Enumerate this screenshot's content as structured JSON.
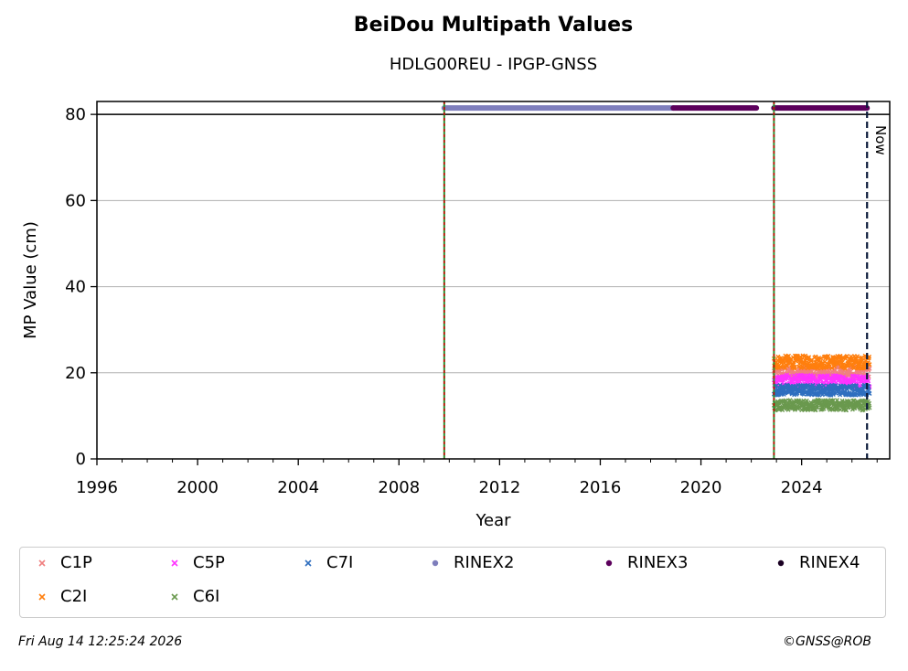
{
  "chart_data": {
    "type": "scatter",
    "title": "BeiDou Multipath Values",
    "subtitle": "HDLG00REU - IPGP-GNSS",
    "xlabel": "Year",
    "ylabel": "MP Value (cm)",
    "xlim": [
      1996,
      2027.5
    ],
    "ylim": [
      0,
      83
    ],
    "x_ticks": [
      "1996",
      "2000",
      "2004",
      "2008",
      "2012",
      "2016",
      "2020",
      "2024"
    ],
    "y_ticks": [
      "0",
      "20",
      "40",
      "60",
      "80"
    ],
    "grid": "horizontal",
    "ref_line_y": 80,
    "vertical_markers": [
      {
        "x": 2009.8,
        "style": "red-green-dashed"
      },
      {
        "x": 2022.9,
        "style": "red-green-dashed"
      }
    ],
    "now_marker": {
      "x": 2026.6,
      "label": "Now"
    },
    "series": [
      {
        "name": "C1P",
        "color": "#f08080",
        "marker": "x",
        "x_range": [
          2022.9,
          2026.7
        ],
        "mean": 20,
        "spread": 1.5
      },
      {
        "name": "C2I",
        "color": "#ff7f0e",
        "marker": "x",
        "x_range": [
          2022.9,
          2026.7
        ],
        "mean": 22.5,
        "spread": 1.5
      },
      {
        "name": "C5P",
        "color": "#ff33ff",
        "marker": "x",
        "x_range": [
          2022.9,
          2026.7
        ],
        "mean": 18,
        "spread": 1.5
      },
      {
        "name": "C6I",
        "color": "#6a994e",
        "marker": "x",
        "x_range": [
          2022.9,
          2026.7
        ],
        "mean": 12.5,
        "spread": 1.2
      },
      {
        "name": "C7I",
        "color": "#2f6fbf",
        "marker": "x",
        "x_range": [
          2022.9,
          2026.7
        ],
        "mean": 16,
        "spread": 1.2
      },
      {
        "name": "RINEX2",
        "color": "#7e7ebc",
        "marker": "o",
        "segments": [
          [
            2009.8,
            2018.9
          ]
        ],
        "y": 81.5
      },
      {
        "name": "RINEX3",
        "color": "#5c005c",
        "marker": "o",
        "segments": [
          [
            2018.9,
            2022.2
          ],
          [
            2022.9,
            2026.6
          ]
        ],
        "y": 81.5
      },
      {
        "name": "RINEX4",
        "color": "#1a0022",
        "marker": "o",
        "segments": [],
        "y": 81.5
      }
    ],
    "legend_position": "bottom"
  },
  "footer": {
    "timestamp": "Fri Aug 14 12:25:24 2026",
    "copyright": "©GNSS@ROB"
  }
}
